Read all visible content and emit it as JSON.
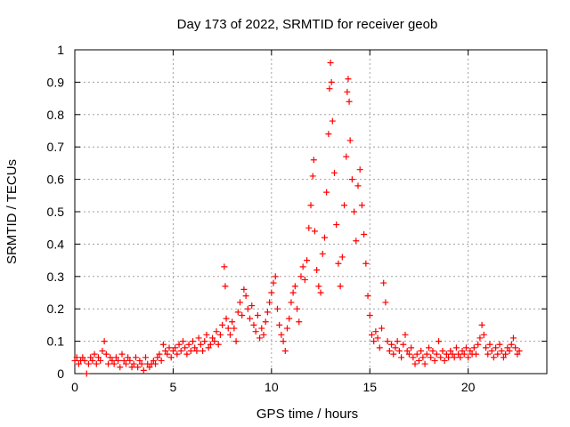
{
  "chart_data": {
    "type": "scatter",
    "title": "Day 173 of 2022, SRMTID for receiver geob",
    "xlabel": "GPS time / hours",
    "ylabel": "SRMTID / TECUs",
    "xlim": [
      0,
      24
    ],
    "ylim": [
      0,
      1
    ],
    "xticks": [
      0,
      5,
      10,
      15,
      20
    ],
    "yticks": [
      0,
      0.1,
      0.2,
      0.3,
      0.4,
      0.5,
      0.6,
      0.7,
      0.8,
      0.9,
      1
    ],
    "xtick_labels": [
      "0",
      "5",
      "10",
      "15",
      "20"
    ],
    "ytick_labels": [
      "0",
      "0.1",
      "0.2",
      "0.3",
      "0.4",
      "0.5",
      "0.6",
      "0.7",
      "0.8",
      "0.9",
      "1"
    ],
    "grid": true,
    "marker": "+",
    "color": "#ff0000",
    "series": [
      {
        "name": "SRMTID",
        "points": [
          [
            0.0,
            0.04
          ],
          [
            0.1,
            0.05
          ],
          [
            0.2,
            0.03
          ],
          [
            0.3,
            0.04
          ],
          [
            0.4,
            0.05
          ],
          [
            0.5,
            0.04
          ],
          [
            0.6,
            0.0
          ],
          [
            0.7,
            0.03
          ],
          [
            0.8,
            0.05
          ],
          [
            0.9,
            0.04
          ],
          [
            1.0,
            0.06
          ],
          [
            1.1,
            0.03
          ],
          [
            1.2,
            0.05
          ],
          [
            1.3,
            0.04
          ],
          [
            1.4,
            0.07
          ],
          [
            1.5,
            0.1
          ],
          [
            1.6,
            0.06
          ],
          [
            1.7,
            0.03
          ],
          [
            1.8,
            0.05
          ],
          [
            1.9,
            0.04
          ],
          [
            2.0,
            0.03
          ],
          [
            2.1,
            0.05
          ],
          [
            2.2,
            0.04
          ],
          [
            2.3,
            0.02
          ],
          [
            2.4,
            0.06
          ],
          [
            2.5,
            0.04
          ],
          [
            2.6,
            0.03
          ],
          [
            2.7,
            0.05
          ],
          [
            2.8,
            0.04
          ],
          [
            2.9,
            0.02
          ],
          [
            3.0,
            0.03
          ],
          [
            3.1,
            0.05
          ],
          [
            3.2,
            0.02
          ],
          [
            3.3,
            0.04
          ],
          [
            3.4,
            0.03
          ],
          [
            3.5,
            0.01
          ],
          [
            3.6,
            0.05
          ],
          [
            3.7,
            0.03
          ],
          [
            3.8,
            0.02
          ],
          [
            3.9,
            0.03
          ],
          [
            4.0,
            0.04
          ],
          [
            4.1,
            0.03
          ],
          [
            4.2,
            0.05
          ],
          [
            4.3,
            0.06
          ],
          [
            4.4,
            0.04
          ],
          [
            4.5,
            0.09
          ],
          [
            4.6,
            0.07
          ],
          [
            4.7,
            0.06
          ],
          [
            4.8,
            0.08
          ],
          [
            4.9,
            0.05
          ],
          [
            5.0,
            0.07
          ],
          [
            5.1,
            0.08
          ],
          [
            5.2,
            0.06
          ],
          [
            5.3,
            0.09
          ],
          [
            5.4,
            0.07
          ],
          [
            5.5,
            0.1
          ],
          [
            5.6,
            0.08
          ],
          [
            5.7,
            0.06
          ],
          [
            5.8,
            0.09
          ],
          [
            5.9,
            0.07
          ],
          [
            6.0,
            0.1
          ],
          [
            6.1,
            0.08
          ],
          [
            6.2,
            0.07
          ],
          [
            6.3,
            0.11
          ],
          [
            6.4,
            0.09
          ],
          [
            6.5,
            0.07
          ],
          [
            6.6,
            0.1
          ],
          [
            6.7,
            0.12
          ],
          [
            6.8,
            0.08
          ],
          [
            6.9,
            0.09
          ],
          [
            7.0,
            0.11
          ],
          [
            7.1,
            0.1
          ],
          [
            7.2,
            0.13
          ],
          [
            7.3,
            0.09
          ],
          [
            7.4,
            0.12
          ],
          [
            7.5,
            0.15
          ],
          [
            7.6,
            0.33
          ],
          [
            7.65,
            0.27
          ],
          [
            7.7,
            0.17
          ],
          [
            7.8,
            0.14
          ],
          [
            7.9,
            0.12
          ],
          [
            8.0,
            0.16
          ],
          [
            8.1,
            0.14
          ],
          [
            8.2,
            0.1
          ],
          [
            8.3,
            0.19
          ],
          [
            8.4,
            0.22
          ],
          [
            8.5,
            0.18
          ],
          [
            8.6,
            0.26
          ],
          [
            8.7,
            0.24
          ],
          [
            8.8,
            0.2
          ],
          [
            8.9,
            0.17
          ],
          [
            9.0,
            0.21
          ],
          [
            9.1,
            0.15
          ],
          [
            9.2,
            0.13
          ],
          [
            9.3,
            0.18
          ],
          [
            9.4,
            0.11
          ],
          [
            9.5,
            0.14
          ],
          [
            9.6,
            0.12
          ],
          [
            9.7,
            0.16
          ],
          [
            9.8,
            0.19
          ],
          [
            9.9,
            0.22
          ],
          [
            10.0,
            0.25
          ],
          [
            10.1,
            0.28
          ],
          [
            10.2,
            0.3
          ],
          [
            10.3,
            0.2
          ],
          [
            10.4,
            0.15
          ],
          [
            10.5,
            0.12
          ],
          [
            10.6,
            0.1
          ],
          [
            10.7,
            0.07
          ],
          [
            10.8,
            0.14
          ],
          [
            10.9,
            0.17
          ],
          [
            11.0,
            0.22
          ],
          [
            11.1,
            0.25
          ],
          [
            11.2,
            0.27
          ],
          [
            11.3,
            0.2
          ],
          [
            11.4,
            0.16
          ],
          [
            11.5,
            0.3
          ],
          [
            11.6,
            0.33
          ],
          [
            11.7,
            0.29
          ],
          [
            11.8,
            0.35
          ],
          [
            11.9,
            0.45
          ],
          [
            12.0,
            0.52
          ],
          [
            12.1,
            0.61
          ],
          [
            12.15,
            0.66
          ],
          [
            12.2,
            0.44
          ],
          [
            12.3,
            0.32
          ],
          [
            12.4,
            0.27
          ],
          [
            12.5,
            0.25
          ],
          [
            12.6,
            0.37
          ],
          [
            12.7,
            0.42
          ],
          [
            12.8,
            0.56
          ],
          [
            12.9,
            0.74
          ],
          [
            12.95,
            0.88
          ],
          [
            13.0,
            0.96
          ],
          [
            13.05,
            0.9
          ],
          [
            13.1,
            0.78
          ],
          [
            13.2,
            0.62
          ],
          [
            13.3,
            0.46
          ],
          [
            13.4,
            0.34
          ],
          [
            13.5,
            0.27
          ],
          [
            13.6,
            0.36
          ],
          [
            13.7,
            0.52
          ],
          [
            13.8,
            0.67
          ],
          [
            13.85,
            0.87
          ],
          [
            13.9,
            0.91
          ],
          [
            13.95,
            0.84
          ],
          [
            14.0,
            0.72
          ],
          [
            14.1,
            0.6
          ],
          [
            14.2,
            0.5
          ],
          [
            14.3,
            0.41
          ],
          [
            14.4,
            0.58
          ],
          [
            14.5,
            0.63
          ],
          [
            14.6,
            0.52
          ],
          [
            14.7,
            0.43
          ],
          [
            14.8,
            0.34
          ],
          [
            14.9,
            0.24
          ],
          [
            15.0,
            0.18
          ],
          [
            15.1,
            0.12
          ],
          [
            15.2,
            0.1
          ],
          [
            15.3,
            0.13
          ],
          [
            15.4,
            0.11
          ],
          [
            15.5,
            0.08
          ],
          [
            15.6,
            0.14
          ],
          [
            15.7,
            0.28
          ],
          [
            15.8,
            0.22
          ],
          [
            15.9,
            0.1
          ],
          [
            16.0,
            0.07
          ],
          [
            16.1,
            0.09
          ],
          [
            16.2,
            0.06
          ],
          [
            16.3,
            0.08
          ],
          [
            16.4,
            0.1
          ],
          [
            16.5,
            0.07
          ],
          [
            16.6,
            0.05
          ],
          [
            16.7,
            0.09
          ],
          [
            16.8,
            0.12
          ],
          [
            16.9,
            0.07
          ],
          [
            17.0,
            0.06
          ],
          [
            17.1,
            0.08
          ],
          [
            17.2,
            0.05
          ],
          [
            17.3,
            0.03
          ],
          [
            17.4,
            0.06
          ],
          [
            17.5,
            0.04
          ],
          [
            17.6,
            0.07
          ],
          [
            17.7,
            0.05
          ],
          [
            17.8,
            0.03
          ],
          [
            17.9,
            0.06
          ],
          [
            18.0,
            0.08
          ],
          [
            18.1,
            0.05
          ],
          [
            18.2,
            0.07
          ],
          [
            18.3,
            0.04
          ],
          [
            18.4,
            0.06
          ],
          [
            18.5,
            0.1
          ],
          [
            18.6,
            0.05
          ],
          [
            18.7,
            0.07
          ],
          [
            18.8,
            0.04
          ],
          [
            18.9,
            0.06
          ],
          [
            19.0,
            0.05
          ],
          [
            19.1,
            0.07
          ],
          [
            19.2,
            0.06
          ],
          [
            19.3,
            0.05
          ],
          [
            19.4,
            0.08
          ],
          [
            19.5,
            0.06
          ],
          [
            19.6,
            0.05
          ],
          [
            19.7,
            0.07
          ],
          [
            19.8,
            0.06
          ],
          [
            19.9,
            0.08
          ],
          [
            20.0,
            0.05
          ],
          [
            20.1,
            0.07
          ],
          [
            20.2,
            0.06
          ],
          [
            20.3,
            0.08
          ],
          [
            20.4,
            0.06
          ],
          [
            20.5,
            0.09
          ],
          [
            20.6,
            0.11
          ],
          [
            20.7,
            0.15
          ],
          [
            20.8,
            0.12
          ],
          [
            20.9,
            0.08
          ],
          [
            21.0,
            0.06
          ],
          [
            21.1,
            0.09
          ],
          [
            21.2,
            0.07
          ],
          [
            21.3,
            0.05
          ],
          [
            21.4,
            0.08
          ],
          [
            21.5,
            0.06
          ],
          [
            21.6,
            0.09
          ],
          [
            21.7,
            0.07
          ],
          [
            21.8,
            0.05
          ],
          [
            21.9,
            0.06
          ],
          [
            22.0,
            0.08
          ],
          [
            22.1,
            0.07
          ],
          [
            22.2,
            0.09
          ],
          [
            22.3,
            0.11
          ],
          [
            22.4,
            0.08
          ],
          [
            22.5,
            0.06
          ],
          [
            22.6,
            0.07
          ]
        ]
      }
    ]
  }
}
